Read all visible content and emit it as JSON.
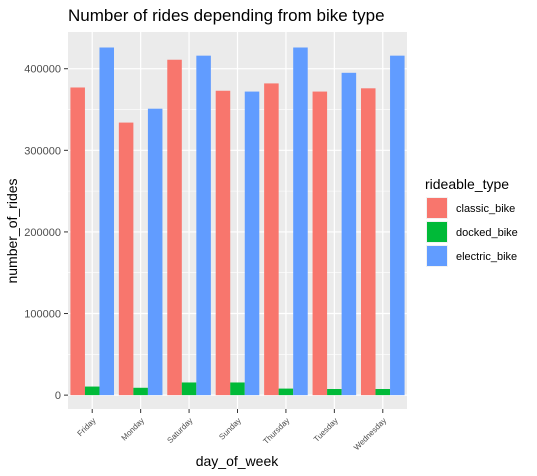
{
  "chart_data": {
    "type": "bar",
    "title": "Number of rides depending from bike type",
    "xlabel": "day_of_week",
    "ylabel": "number_of_rides",
    "categories": [
      "Friday",
      "Monday",
      "Saturday",
      "Sunday",
      "Thursday",
      "Tuesday",
      "Wednesday"
    ],
    "series": [
      {
        "name": "classic_bike",
        "color": "#F8766D",
        "values": [
          377000,
          334000,
          411000,
          373000,
          382000,
          372000,
          376000
        ]
      },
      {
        "name": "docked_bike",
        "color": "#00BA38",
        "values": [
          10500,
          9000,
          15500,
          15500,
          8000,
          7500,
          7500
        ]
      },
      {
        "name": "electric_bike",
        "color": "#619CFF",
        "values": [
          426000,
          351000,
          416000,
          372000,
          426000,
          395000,
          416000
        ]
      }
    ],
    "yticks": [
      0,
      100000,
      200000,
      300000,
      400000
    ],
    "ylim": [
      -17000,
      445000
    ],
    "grid": true,
    "legend": {
      "title": "rideable_type",
      "placement": "right"
    }
  }
}
